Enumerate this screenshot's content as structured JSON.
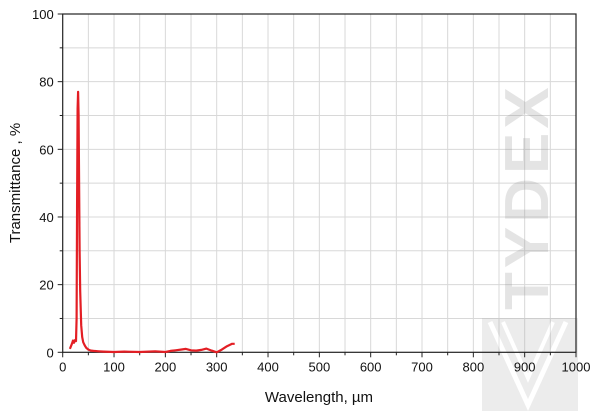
{
  "chart_data": {
    "type": "line",
    "title": "",
    "xlabel": "Wavelength, µm",
    "ylabel": "Transmittance , %",
    "xlim": [
      0,
      1000
    ],
    "ylim": [
      0,
      100
    ],
    "xticks": [
      "0",
      "100",
      "200",
      "300",
      "400",
      "500",
      "600",
      "700",
      "800",
      "900",
      "1000"
    ],
    "yticks": [
      "0",
      "20",
      "40",
      "60",
      "80",
      "100"
    ],
    "grid": true,
    "line_color": "#e31e24",
    "series": [
      {
        "x": [
          14,
          18,
          20,
          22,
          24,
          26,
          27,
          28,
          29,
          30,
          31,
          32,
          33,
          34,
          36,
          38,
          40,
          43,
          46,
          50,
          55,
          60,
          70,
          80,
          100,
          120,
          150,
          180,
          200,
          210,
          220,
          230,
          240,
          250,
          260,
          270,
          280,
          290,
          300,
          310,
          320,
          330,
          335
        ],
        "y": [
          1,
          2.5,
          3.5,
          2.8,
          3.6,
          3.3,
          10,
          45,
          72,
          77,
          70,
          50,
          30,
          18,
          8,
          4.5,
          3,
          2,
          1.3,
          0.8,
          0.5,
          0.4,
          0.3,
          0.2,
          0.1,
          0.2,
          0.1,
          0.3,
          0.1,
          0.4,
          0.6,
          0.8,
          1.0,
          0.6,
          0.5,
          0.7,
          1.1,
          0.5,
          0.0,
          0.8,
          1.8,
          2.5,
          2.5
        ]
      }
    ]
  },
  "watermark": {
    "text": "TYDEX"
  }
}
